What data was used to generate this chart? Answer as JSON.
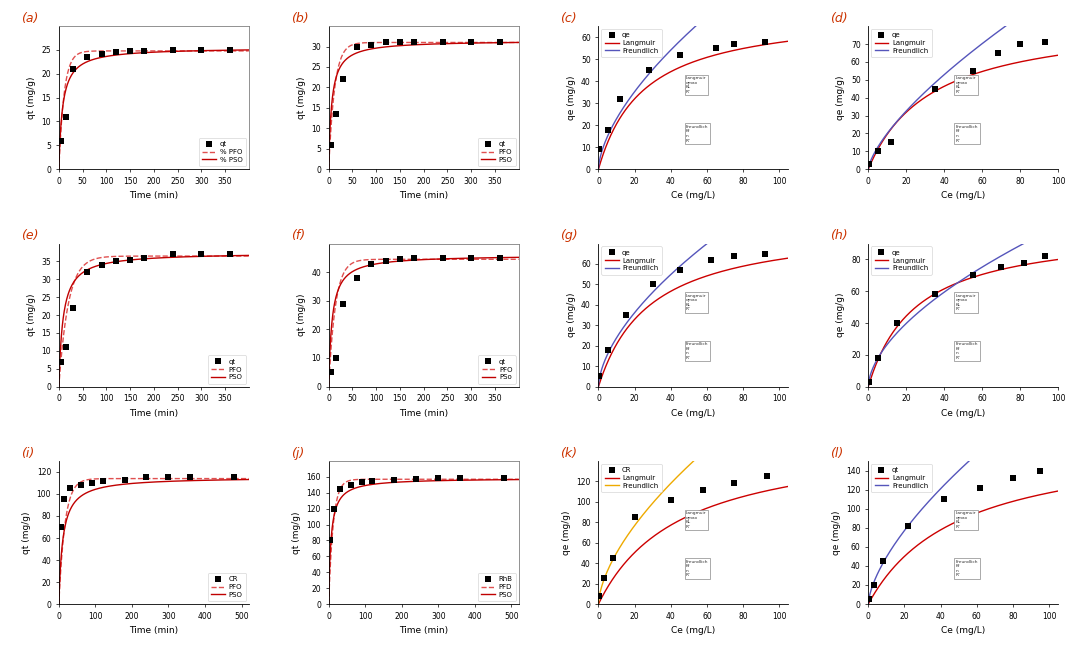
{
  "panels": [
    {
      "label": "(a)",
      "type": "kinetics",
      "xlabel": "Time (min)",
      "ylabel": "qt (mg/g)",
      "xlim": [
        0,
        400
      ],
      "ylim": [
        0,
        30
      ],
      "yticks": [
        0,
        5,
        10,
        15,
        20,
        25
      ],
      "xticks": [
        0,
        50,
        100,
        150,
        200,
        250,
        300,
        350
      ],
      "data_x": [
        5,
        15,
        30,
        60,
        90,
        120,
        150,
        180,
        240,
        300,
        360
      ],
      "data_y": [
        6.0,
        11.0,
        21.0,
        23.5,
        24.2,
        24.5,
        24.8,
        24.8,
        25.0,
        25.0,
        25.0
      ],
      "pfo_qe": 24.8,
      "pfo_k": 0.09,
      "pso_qe": 25.5,
      "pso_k": 0.005,
      "legend_labels": [
        "qt",
        "% PFO",
        "% PSO"
      ],
      "legend_loc": "lower right",
      "pfo_color": "#e05050",
      "pso_color": "#c00000",
      "pfo_style": "--",
      "pso_style": "-",
      "top_spine_color": "gray"
    },
    {
      "label": "(b)",
      "type": "kinetics",
      "xlabel": "Time (min)",
      "ylabel": "qt (mg/g)",
      "xlim": [
        0,
        400
      ],
      "ylim": [
        0,
        35
      ],
      "yticks": [
        0,
        5,
        10,
        15,
        20,
        25,
        30
      ],
      "xticks": [
        0,
        50,
        100,
        150,
        200,
        250,
        300,
        350
      ],
      "data_x": [
        5,
        15,
        30,
        60,
        90,
        120,
        150,
        180,
        240,
        300,
        360
      ],
      "data_y": [
        6.0,
        13.5,
        22.0,
        30.0,
        30.5,
        31.0,
        31.0,
        31.0,
        31.0,
        31.0,
        31.0
      ],
      "pfo_qe": 31.0,
      "pfo_k": 0.08,
      "pso_qe": 31.5,
      "pso_k": 0.005,
      "legend_labels": [
        "qt",
        "PFO",
        "PSO"
      ],
      "legend_loc": "lower right",
      "pfo_color": "#e05050",
      "pso_color": "#c00000",
      "pfo_style": "--",
      "pso_style": "-",
      "top_spine_color": "gray"
    },
    {
      "label": "(c)",
      "type": "isotherm",
      "xlabel": "Ce (mg/L)",
      "ylabel": "qe (mg/g)",
      "xlim": [
        0,
        105
      ],
      "ylim": [
        0,
        65
      ],
      "yticks": [
        0,
        10,
        20,
        30,
        40,
        50,
        60
      ],
      "xticks": [
        0,
        20,
        40,
        60,
        80,
        100
      ],
      "data_x": [
        0.5,
        5.0,
        12.0,
        28.0,
        45.0,
        65.0,
        75.0,
        92.0
      ],
      "data_y": [
        9.0,
        18.0,
        32.0,
        45.0,
        52.0,
        55.0,
        57.0,
        58.0
      ],
      "langmuir_qmax": 72.0,
      "langmuir_KL": 0.04,
      "freundlich_Kf": 5.5,
      "freundlich_n": 0.62,
      "legend_labels": [
        "qe",
        "Langmuir",
        "Freundlich"
      ],
      "legend_loc": "upper left",
      "langmuir_color": "#cc0000",
      "freundlich_color": "#5555bb",
      "has_inset": true
    },
    {
      "label": "(d)",
      "type": "isotherm",
      "xlabel": "Ce (mg/L)",
      "ylabel": "qe (mg/g)",
      "xlim": [
        0,
        100
      ],
      "ylim": [
        0,
        80
      ],
      "yticks": [
        0,
        10,
        20,
        30,
        40,
        50,
        60,
        70
      ],
      "xticks": [
        0,
        20,
        40,
        60,
        80,
        100
      ],
      "data_x": [
        0.5,
        5.0,
        12.0,
        35.0,
        55.0,
        68.0,
        80.0,
        93.0
      ],
      "data_y": [
        3.0,
        10.0,
        15.0,
        45.0,
        55.0,
        65.0,
        70.0,
        71.0
      ],
      "langmuir_qmax": 85.0,
      "langmuir_KL": 0.03,
      "freundlich_Kf": 4.0,
      "freundlich_n": 0.7,
      "legend_labels": [
        "qe",
        "Langmuir",
        "Freundlich"
      ],
      "legend_loc": "upper left",
      "langmuir_color": "#cc0000",
      "freundlich_color": "#5555bb",
      "has_inset": true
    },
    {
      "label": "(e)",
      "type": "kinetics",
      "xlabel": "Time (min)",
      "ylabel": "qt (mg/g)",
      "xlim": [
        0,
        400
      ],
      "ylim": [
        0,
        40
      ],
      "yticks": [
        0,
        5,
        10,
        15,
        20,
        25,
        30,
        35
      ],
      "xticks": [
        0,
        50,
        100,
        150,
        200,
        250,
        300,
        350
      ],
      "data_x": [
        5,
        15,
        30,
        60,
        90,
        120,
        150,
        180,
        240,
        300,
        360
      ],
      "data_y": [
        7.0,
        11.0,
        22.0,
        32.0,
        34.0,
        35.0,
        35.5,
        36.0,
        37.0,
        37.0,
        37.0
      ],
      "pfo_qe": 36.5,
      "pfo_k": 0.05,
      "pso_qe": 37.5,
      "pso_k": 0.003,
      "legend_labels": [
        "qt",
        "PFO",
        "PSO"
      ],
      "legend_loc": "lower right",
      "pfo_color": "#e05050",
      "pso_color": "#c00000",
      "pfo_style": "--",
      "pso_style": "-",
      "top_spine_color": "none"
    },
    {
      "label": "(f)",
      "type": "kinetics",
      "xlabel": "Time (min)",
      "ylabel": "qt (mg/g)",
      "xlim": [
        0,
        400
      ],
      "ylim": [
        0,
        50
      ],
      "yticks": [
        0,
        10,
        20,
        30,
        40
      ],
      "xticks": [
        0,
        50,
        100,
        150,
        200,
        250,
        300,
        350
      ],
      "data_x": [
        5,
        15,
        30,
        60,
        90,
        120,
        150,
        180,
        240,
        300,
        360
      ],
      "data_y": [
        5.0,
        10.0,
        29.0,
        38.0,
        43.0,
        44.0,
        44.5,
        45.0,
        45.0,
        45.0,
        45.0
      ],
      "pfo_qe": 44.5,
      "pfo_k": 0.07,
      "pso_qe": 46.0,
      "pso_k": 0.003,
      "legend_labels": [
        "qt",
        "PFO",
        "PSo"
      ],
      "legend_loc": "lower right",
      "pfo_color": "#e05050",
      "pso_color": "#c00000",
      "pfo_style": "--",
      "pso_style": "-",
      "top_spine_color": "gray"
    },
    {
      "label": "(g)",
      "type": "isotherm",
      "xlabel": "Ce (mg/L)",
      "ylabel": "qe (mg/g)",
      "xlim": [
        0,
        105
      ],
      "ylim": [
        0,
        70
      ],
      "yticks": [
        0,
        10,
        20,
        30,
        40,
        50,
        60
      ],
      "xticks": [
        0,
        20,
        40,
        60,
        80,
        100
      ],
      "data_x": [
        0.5,
        5.0,
        15.0,
        30.0,
        45.0,
        62.0,
        75.0,
        92.0
      ],
      "data_y": [
        5.0,
        18.0,
        35.0,
        50.0,
        57.0,
        62.0,
        64.0,
        65.0
      ],
      "langmuir_qmax": 80.0,
      "langmuir_KL": 0.035,
      "freundlich_Kf": 6.0,
      "freundlich_n": 0.6,
      "legend_labels": [
        "qe",
        "Langmuir",
        "Freundlich"
      ],
      "legend_loc": "upper left",
      "langmuir_color": "#cc0000",
      "freundlich_color": "#5555bb",
      "has_inset": true
    },
    {
      "label": "(h)",
      "type": "isotherm",
      "xlabel": "Ce (mg/L)",
      "ylabel": "qe (mg/g)",
      "xlim": [
        0,
        100
      ],
      "ylim": [
        0,
        90
      ],
      "yticks": [
        0,
        20,
        40,
        60,
        80
      ],
      "xticks": [
        0,
        20,
        40,
        60,
        80,
        100
      ],
      "data_x": [
        0.5,
        5.0,
        15.0,
        35.0,
        55.0,
        70.0,
        82.0,
        93.0
      ],
      "data_y": [
        3.0,
        18.0,
        40.0,
        58.0,
        70.0,
        75.0,
        78.0,
        82.0
      ],
      "langmuir_qmax": 100.0,
      "langmuir_KL": 0.04,
      "freundlich_Kf": 7.0,
      "freundlich_n": 0.58,
      "legend_labels": [
        "qe",
        "Langmuir",
        "Freundlich"
      ],
      "legend_loc": "upper left",
      "langmuir_color": "#cc0000",
      "freundlich_color": "#5555bb",
      "has_inset": true
    },
    {
      "label": "(i)",
      "type": "kinetics",
      "xlabel": "Time (min)",
      "ylabel": "qt (mg/g)",
      "xlim": [
        0,
        520
      ],
      "ylim": [
        0,
        130
      ],
      "yticks": [
        0,
        20,
        40,
        60,
        80,
        100,
        120
      ],
      "xticks": [
        0,
        100,
        200,
        300,
        400,
        500
      ],
      "data_x": [
        5,
        15,
        30,
        60,
        90,
        120,
        180,
        240,
        300,
        360,
        480
      ],
      "data_y": [
        70.0,
        95.0,
        105.0,
        108.0,
        110.0,
        112.0,
        113.0,
        115.0,
        115.0,
        115.0,
        115.0
      ],
      "pfo_qe": 114.0,
      "pfo_k": 0.06,
      "pso_qe": 115.5,
      "pso_k": 0.0008,
      "legend_labels": [
        "CR",
        "PFO",
        "PSO"
      ],
      "legend_loc": "lower right",
      "pfo_color": "#e05050",
      "pso_color": "#c00000",
      "pfo_style": "--",
      "pso_style": "-",
      "top_spine_color": "none"
    },
    {
      "label": "(j)",
      "type": "kinetics",
      "xlabel": "Time (min)",
      "ylabel": "qt (mg/g)",
      "xlim": [
        0,
        520
      ],
      "ylim": [
        0,
        180
      ],
      "yticks": [
        0,
        20,
        40,
        60,
        80,
        100,
        120,
        140,
        160
      ],
      "xticks": [
        0,
        100,
        200,
        300,
        400,
        500
      ],
      "data_x": [
        5,
        15,
        30,
        60,
        90,
        120,
        180,
        240,
        300,
        360,
        480
      ],
      "data_y": [
        80.0,
        120.0,
        145.0,
        150.0,
        153.0,
        155.0,
        156.0,
        157.0,
        158.0,
        158.0,
        158.0
      ],
      "pfo_qe": 157.0,
      "pfo_k": 0.08,
      "pso_qe": 158.5,
      "pso_k": 0.001,
      "legend_labels": [
        "RhB",
        "PFD",
        "PSO"
      ],
      "legend_loc": "lower right",
      "pfo_color": "#e05050",
      "pso_color": "#c00000",
      "pfo_style": "--",
      "pso_style": "-",
      "top_spine_color": "gray"
    },
    {
      "label": "(k)",
      "type": "isotherm",
      "xlabel": "Ce (mg/L)",
      "ylabel": "qe (mg/g)",
      "xlim": [
        0,
        105
      ],
      "ylim": [
        0,
        140
      ],
      "yticks": [
        0,
        20,
        40,
        60,
        80,
        100,
        120
      ],
      "xticks": [
        0,
        20,
        40,
        60,
        80,
        100
      ],
      "data_x": [
        0.5,
        3.0,
        8.0,
        20.0,
        40.0,
        58.0,
        75.0,
        93.0
      ],
      "data_y": [
        8.0,
        25.0,
        45.0,
        85.0,
        102.0,
        112.0,
        118.0,
        125.0
      ],
      "langmuir_qmax": 165.0,
      "langmuir_KL": 0.022,
      "freundlich_Kf": 12.0,
      "freundlich_n": 0.62,
      "legend_labels": [
        "CR",
        "Langmuir",
        "Freundlich"
      ],
      "legend_loc": "upper left",
      "langmuir_color": "#cc0000",
      "freundlich_color": "#eeaa00",
      "has_inset": true
    },
    {
      "label": "(l)",
      "type": "isotherm",
      "xlabel": "Ce (mg/L)",
      "ylabel": "qe (mg/g)",
      "xlim": [
        0,
        105
      ],
      "ylim": [
        0,
        150
      ],
      "yticks": [
        0,
        20,
        40,
        60,
        80,
        100,
        120,
        140
      ],
      "xticks": [
        0,
        20,
        40,
        60,
        80,
        100
      ],
      "data_x": [
        0.5,
        3.0,
        8.0,
        22.0,
        42.0,
        62.0,
        80.0,
        95.0
      ],
      "data_y": [
        5.0,
        20.0,
        45.0,
        82.0,
        110.0,
        122.0,
        132.0,
        140.0
      ],
      "langmuir_qmax": 175.0,
      "langmuir_KL": 0.02,
      "freundlich_Kf": 11.0,
      "freundlich_n": 0.65,
      "legend_labels": [
        "qt",
        "Langmuir",
        "Freundlich"
      ],
      "legend_loc": "upper left",
      "langmuir_color": "#cc0000",
      "freundlich_color": "#5555bb",
      "has_inset": true
    }
  ],
  "bg_color": "#ffffff",
  "label_color": "#000000",
  "label_color_red": "#cc3300",
  "data_marker": "s",
  "data_marker_color": "#000000",
  "data_marker_size": 14
}
